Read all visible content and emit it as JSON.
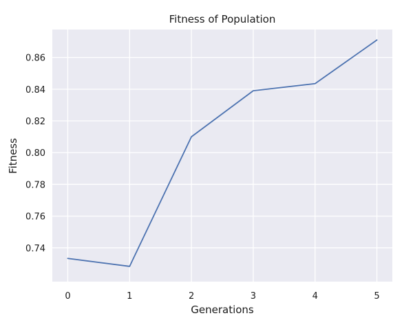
{
  "chart_data": {
    "type": "line",
    "title": "Fitness of Population",
    "xlabel": "Generations",
    "ylabel": "Fitness",
    "x": [
      0,
      1,
      2,
      3,
      4,
      5
    ],
    "series": [
      {
        "values": [
          0.7333,
          0.7283,
          0.81,
          0.839,
          0.8435,
          0.871
        ]
      }
    ],
    "xlim": [
      -0.25,
      5.25
    ],
    "ylim": [
      0.7187,
      0.8776
    ],
    "xticks": [
      "0",
      "1",
      "2",
      "3",
      "4",
      "5"
    ],
    "yticks": [
      "0.74",
      "0.76",
      "0.78",
      "0.80",
      "0.82",
      "0.84",
      "0.86"
    ],
    "grid": true,
    "colors": {
      "background": "#eaeaf2",
      "line": "#4c72b0",
      "grid": "#ffffff"
    }
  }
}
